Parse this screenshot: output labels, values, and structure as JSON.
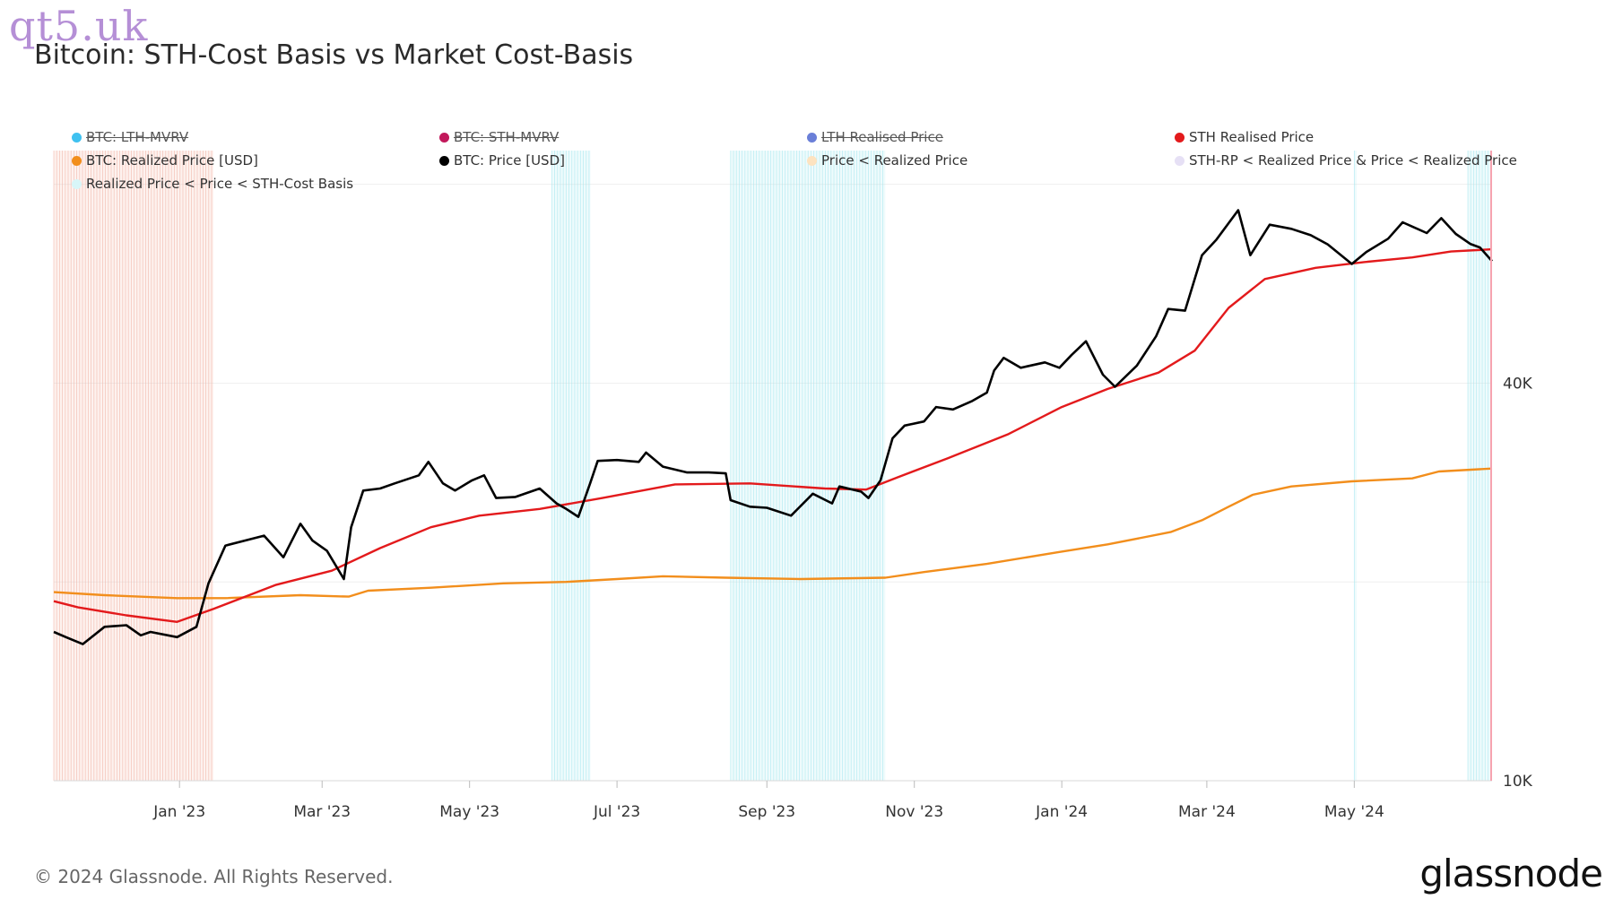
{
  "watermark": "qt5.uk",
  "title": "Bitcoin: STH-Cost Basis vs Market Cost-Basis",
  "footer": {
    "copyright": "© 2024 Glassnode. All Rights Reserved.",
    "logo": "glassnode"
  },
  "legend": [
    [
      {
        "label": "BTC: LTH-MVRV",
        "color": "#3fc1f0",
        "disabled": true
      },
      {
        "label": "BTC: STH-MVRV",
        "color": "#c2185b",
        "disabled": true
      },
      {
        "label": "LTH Realised Price",
        "color": "#6a7fd8",
        "disabled": true
      },
      {
        "label": "STH Realised Price",
        "color": "#e31a1c",
        "disabled": false
      }
    ],
    [
      {
        "label": "BTC: Realized Price [USD]",
        "color": "#f28e1c",
        "disabled": false
      },
      {
        "label": "BTC: Price [USD]",
        "color": "#000000",
        "disabled": false
      },
      {
        "label": "Price < Realized Price",
        "color": "#fde3c0",
        "disabled": false
      },
      {
        "label": "STH-RP < Realized Price & Price < Realized Price",
        "color": "#e6e0f5",
        "disabled": false
      }
    ],
    [
      {
        "label": "Realized Price < Price < STH-Cost Basis",
        "color": "#d8f6f8",
        "disabled": false
      }
    ]
  ],
  "chart_data": {
    "type": "line",
    "y_scale": "log",
    "ylim": [
      10000,
      90000
    ],
    "y_ticks": [
      {
        "value": 40000,
        "label": "40K"
      },
      {
        "value": 10000,
        "label": "10K"
      }
    ],
    "x_range": [
      "2022-11-10",
      "2024-06-27"
    ],
    "x_ticks": [
      {
        "date": "2023-01-01",
        "label": "Jan '23"
      },
      {
        "date": "2023-03-01",
        "label": "Mar '23"
      },
      {
        "date": "2023-05-01",
        "label": "May '23"
      },
      {
        "date": "2023-07-01",
        "label": "Jul '23"
      },
      {
        "date": "2023-09-01",
        "label": "Sep '23"
      },
      {
        "date": "2023-11-01",
        "label": "Nov '23"
      },
      {
        "date": "2024-01-01",
        "label": "Jan '24"
      },
      {
        "date": "2024-03-01",
        "label": "Mar '24"
      },
      {
        "date": "2024-05-01",
        "label": "May '24"
      }
    ],
    "series": [
      {
        "name": "BTC: Price [USD]",
        "color": "#000000",
        "points": [
          [
            "2022-11-10",
            16800
          ],
          [
            "2022-11-15",
            16500
          ],
          [
            "2022-11-22",
            16100
          ],
          [
            "2022-12-01",
            17100
          ],
          [
            "2022-12-10",
            17200
          ],
          [
            "2022-12-16",
            16600
          ],
          [
            "2022-12-20",
            16800
          ],
          [
            "2022-12-31",
            16500
          ],
          [
            "2023-01-08",
            17100
          ],
          [
            "2023-01-13",
            19900
          ],
          [
            "2023-01-20",
            22700
          ],
          [
            "2023-01-30",
            23200
          ],
          [
            "2023-02-05",
            23500
          ],
          [
            "2023-02-13",
            21800
          ],
          [
            "2023-02-20",
            24500
          ],
          [
            "2023-02-25",
            23100
          ],
          [
            "2023-03-03",
            22300
          ],
          [
            "2023-03-10",
            20200
          ],
          [
            "2023-03-13",
            24200
          ],
          [
            "2023-03-18",
            27500
          ],
          [
            "2023-03-25",
            27700
          ],
          [
            "2023-03-31",
            28200
          ],
          [
            "2023-04-10",
            29000
          ],
          [
            "2023-04-14",
            30400
          ],
          [
            "2023-04-20",
            28200
          ],
          [
            "2023-04-25",
            27500
          ],
          [
            "2023-05-02",
            28500
          ],
          [
            "2023-05-07",
            29000
          ],
          [
            "2023-05-12",
            26800
          ],
          [
            "2023-05-20",
            26900
          ],
          [
            "2023-05-30",
            27700
          ],
          [
            "2023-06-06",
            26300
          ],
          [
            "2023-06-10",
            25800
          ],
          [
            "2023-06-15",
            25100
          ],
          [
            "2023-06-20",
            28300
          ],
          [
            "2023-06-23",
            30500
          ],
          [
            "2023-07-01",
            30600
          ],
          [
            "2023-07-10",
            30400
          ],
          [
            "2023-07-13",
            31400
          ],
          [
            "2023-07-20",
            29900
          ],
          [
            "2023-07-30",
            29300
          ],
          [
            "2023-08-08",
            29300
          ],
          [
            "2023-08-15",
            29200
          ],
          [
            "2023-08-17",
            26600
          ],
          [
            "2023-08-25",
            26000
          ],
          [
            "2023-09-01",
            25900
          ],
          [
            "2023-09-11",
            25200
          ],
          [
            "2023-09-20",
            27200
          ],
          [
            "2023-09-28",
            26300
          ],
          [
            "2023-10-01",
            27900
          ],
          [
            "2023-10-10",
            27400
          ],
          [
            "2023-10-13",
            26800
          ],
          [
            "2023-10-18",
            28500
          ],
          [
            "2023-10-23",
            33000
          ],
          [
            "2023-10-28",
            34500
          ],
          [
            "2023-11-05",
            35000
          ],
          [
            "2023-11-10",
            36800
          ],
          [
            "2023-11-17",
            36500
          ],
          [
            "2023-11-25",
            37600
          ],
          [
            "2023-12-01",
            38700
          ],
          [
            "2023-12-04",
            41800
          ],
          [
            "2023-12-08",
            43700
          ],
          [
            "2023-12-15",
            42200
          ],
          [
            "2023-12-25",
            43000
          ],
          [
            "2023-12-31",
            42200
          ],
          [
            "2024-01-05",
            44100
          ],
          [
            "2024-01-11",
            46300
          ],
          [
            "2024-01-18",
            41200
          ],
          [
            "2024-01-23",
            39500
          ],
          [
            "2024-02-01",
            42500
          ],
          [
            "2024-02-09",
            47100
          ],
          [
            "2024-02-14",
            51800
          ],
          [
            "2024-02-21",
            51500
          ],
          [
            "2024-02-28",
            62500
          ],
          [
            "2024-03-05",
            66000
          ],
          [
            "2024-03-14",
            73100
          ],
          [
            "2024-03-19",
            62500
          ],
          [
            "2024-03-27",
            69500
          ],
          [
            "2024-04-05",
            68500
          ],
          [
            "2024-04-13",
            67000
          ],
          [
            "2024-04-20",
            64900
          ],
          [
            "2024-04-30",
            60600
          ],
          [
            "2024-05-06",
            63200
          ],
          [
            "2024-05-15",
            66200
          ],
          [
            "2024-05-21",
            70100
          ],
          [
            "2024-05-31",
            67500
          ],
          [
            "2024-06-06",
            71100
          ],
          [
            "2024-06-12",
            67300
          ],
          [
            "2024-06-18",
            65000
          ],
          [
            "2024-06-22",
            64200
          ],
          [
            "2024-06-27",
            61200
          ]
        ]
      },
      {
        "name": "STH Realised Price",
        "color": "#e31a1c",
        "points": [
          [
            "2022-11-10",
            18700
          ],
          [
            "2022-11-20",
            18300
          ],
          [
            "2022-12-10",
            17800
          ],
          [
            "2022-12-31",
            17400
          ],
          [
            "2023-01-15",
            18200
          ],
          [
            "2023-02-10",
            19800
          ],
          [
            "2023-03-05",
            20800
          ],
          [
            "2023-03-25",
            22500
          ],
          [
            "2023-04-15",
            24200
          ],
          [
            "2023-05-05",
            25200
          ],
          [
            "2023-05-30",
            25800
          ],
          [
            "2023-06-25",
            26800
          ],
          [
            "2023-07-25",
            28100
          ],
          [
            "2023-08-25",
            28200
          ],
          [
            "2023-09-25",
            27700
          ],
          [
            "2023-10-12",
            27600
          ],
          [
            "2023-10-25",
            28800
          ],
          [
            "2023-11-15",
            30800
          ],
          [
            "2023-12-10",
            33500
          ],
          [
            "2024-01-01",
            36800
          ],
          [
            "2024-01-20",
            39200
          ],
          [
            "2024-02-10",
            41500
          ],
          [
            "2024-02-25",
            44800
          ],
          [
            "2024-03-10",
            52000
          ],
          [
            "2024-03-25",
            57500
          ],
          [
            "2024-04-15",
            59800
          ],
          [
            "2024-05-05",
            61000
          ],
          [
            "2024-05-25",
            62000
          ],
          [
            "2024-06-10",
            63300
          ],
          [
            "2024-06-27",
            63800
          ]
        ]
      },
      {
        "name": "BTC: Realized Price [USD]",
        "color": "#f28e1c",
        "points": [
          [
            "2022-11-10",
            19300
          ],
          [
            "2022-12-01",
            19100
          ],
          [
            "2022-12-31",
            18900
          ],
          [
            "2023-01-20",
            18900
          ],
          [
            "2023-02-20",
            19100
          ],
          [
            "2023-03-12",
            19000
          ],
          [
            "2023-03-20",
            19400
          ],
          [
            "2023-04-15",
            19600
          ],
          [
            "2023-05-15",
            19900
          ],
          [
            "2023-06-10",
            20000
          ],
          [
            "2023-07-01",
            20200
          ],
          [
            "2023-07-20",
            20400
          ],
          [
            "2023-08-15",
            20300
          ],
          [
            "2023-09-15",
            20200
          ],
          [
            "2023-10-20",
            20300
          ],
          [
            "2023-11-05",
            20700
          ],
          [
            "2023-12-01",
            21300
          ],
          [
            "2023-12-31",
            22200
          ],
          [
            "2024-01-20",
            22800
          ],
          [
            "2024-02-15",
            23800
          ],
          [
            "2024-02-28",
            24800
          ],
          [
            "2024-03-10",
            26000
          ],
          [
            "2024-03-20",
            27100
          ],
          [
            "2024-04-05",
            27900
          ],
          [
            "2024-04-30",
            28400
          ],
          [
            "2024-05-25",
            28700
          ],
          [
            "2024-06-05",
            29400
          ],
          [
            "2024-06-27",
            29700
          ]
        ]
      }
    ],
    "shaded_ranges": [
      {
        "name": "Price < Realized Price",
        "color": "#f3b6a8",
        "ranges": [
          [
            "2022-11-10",
            "2023-01-15"
          ]
        ]
      },
      {
        "name": "Realized Price < Price < STH-Cost Basis",
        "color": "#a8e8f0",
        "ranges": [
          [
            "2023-06-04",
            "2023-06-20"
          ],
          [
            "2023-08-17",
            "2023-10-20"
          ],
          [
            "2024-05-01",
            "2024-05-02"
          ],
          [
            "2024-06-17",
            "2024-06-27"
          ]
        ]
      }
    ],
    "grid": true,
    "legend_position": "top"
  }
}
